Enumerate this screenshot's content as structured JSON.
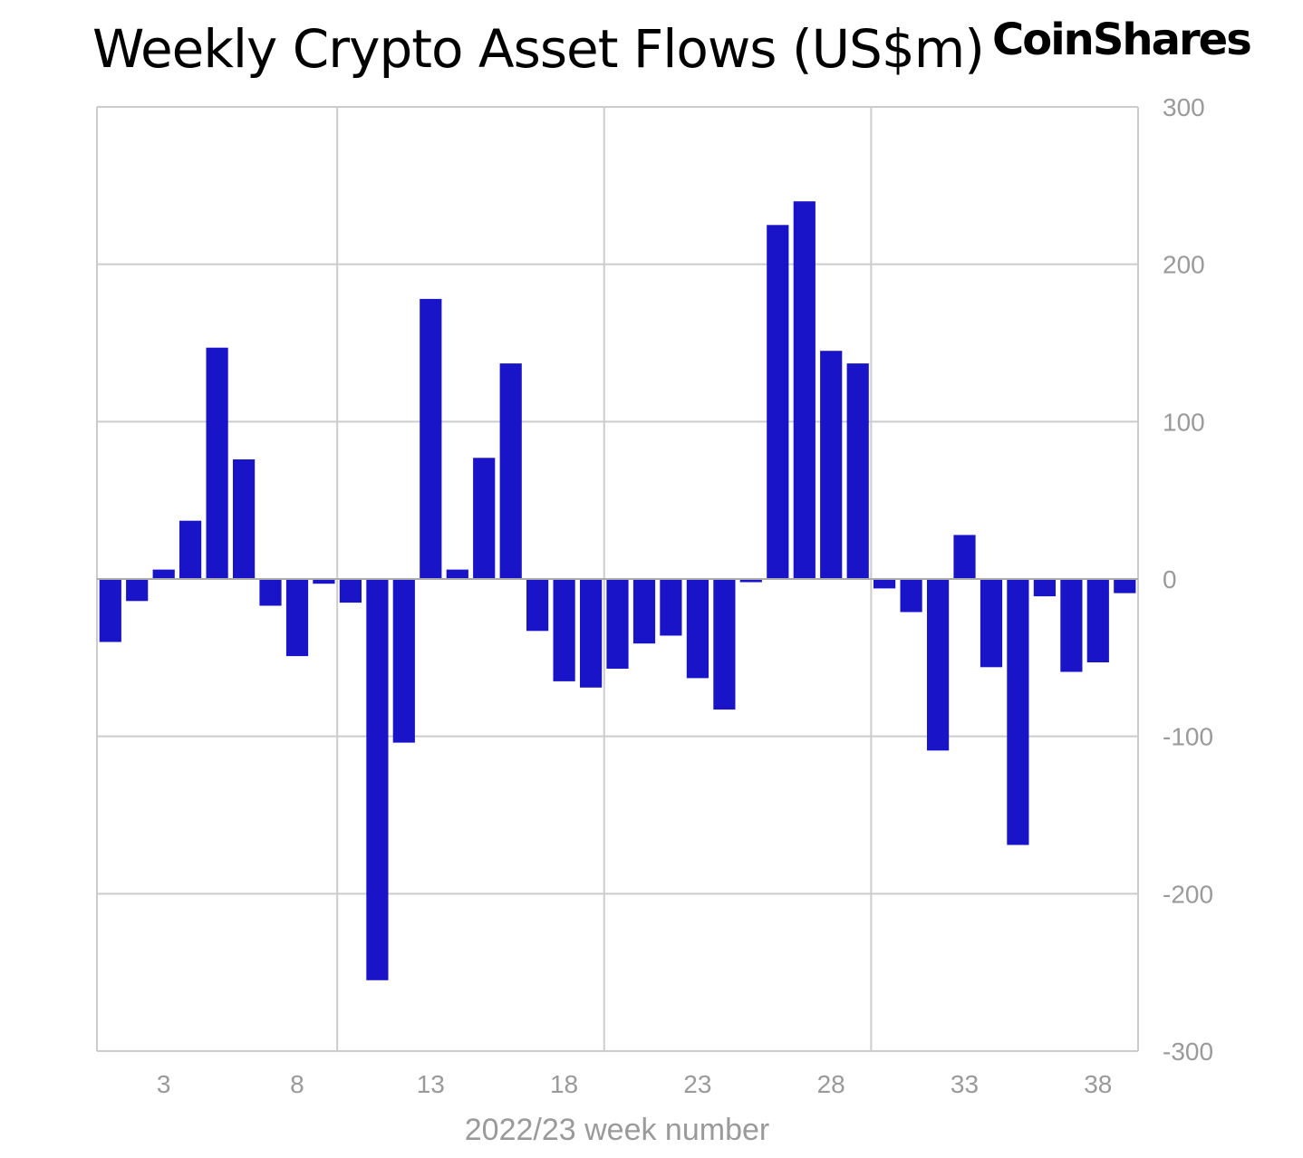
{
  "header": {
    "title": "Weekly Crypto Asset Flows (US$m)",
    "brand": "CoinShares"
  },
  "chart_data": {
    "type": "bar",
    "title": "Weekly Crypto Asset Flows (US$m)",
    "xlabel": "2022/23 week number",
    "ylabel": "",
    "ylim": [
      -300,
      300
    ],
    "yticks": [
      300,
      200,
      100,
      0,
      -100,
      -200,
      -300
    ],
    "xticks": [
      3,
      8,
      13,
      18,
      23,
      28,
      33,
      38
    ],
    "grid": true,
    "bar_color": "#1a14c8",
    "categories": [
      1,
      2,
      3,
      4,
      5,
      6,
      7,
      8,
      9,
      10,
      11,
      12,
      13,
      14,
      15,
      16,
      17,
      18,
      19,
      20,
      21,
      22,
      23,
      24,
      25,
      26,
      27,
      28,
      29,
      30,
      31,
      32,
      33,
      34,
      35,
      36,
      37,
      38,
      39
    ],
    "values": [
      -40,
      -14,
      6,
      37,
      147,
      76,
      -17,
      -49,
      -3,
      -15,
      -255,
      -104,
      178,
      6,
      77,
      137,
      -33,
      -65,
      -69,
      -57,
      -41,
      -36,
      -63,
      -83,
      -2,
      225,
      240,
      145,
      137,
      -6,
      -21,
      -109,
      28,
      -56,
      -169,
      -11,
      -59,
      -53,
      -9
    ]
  }
}
